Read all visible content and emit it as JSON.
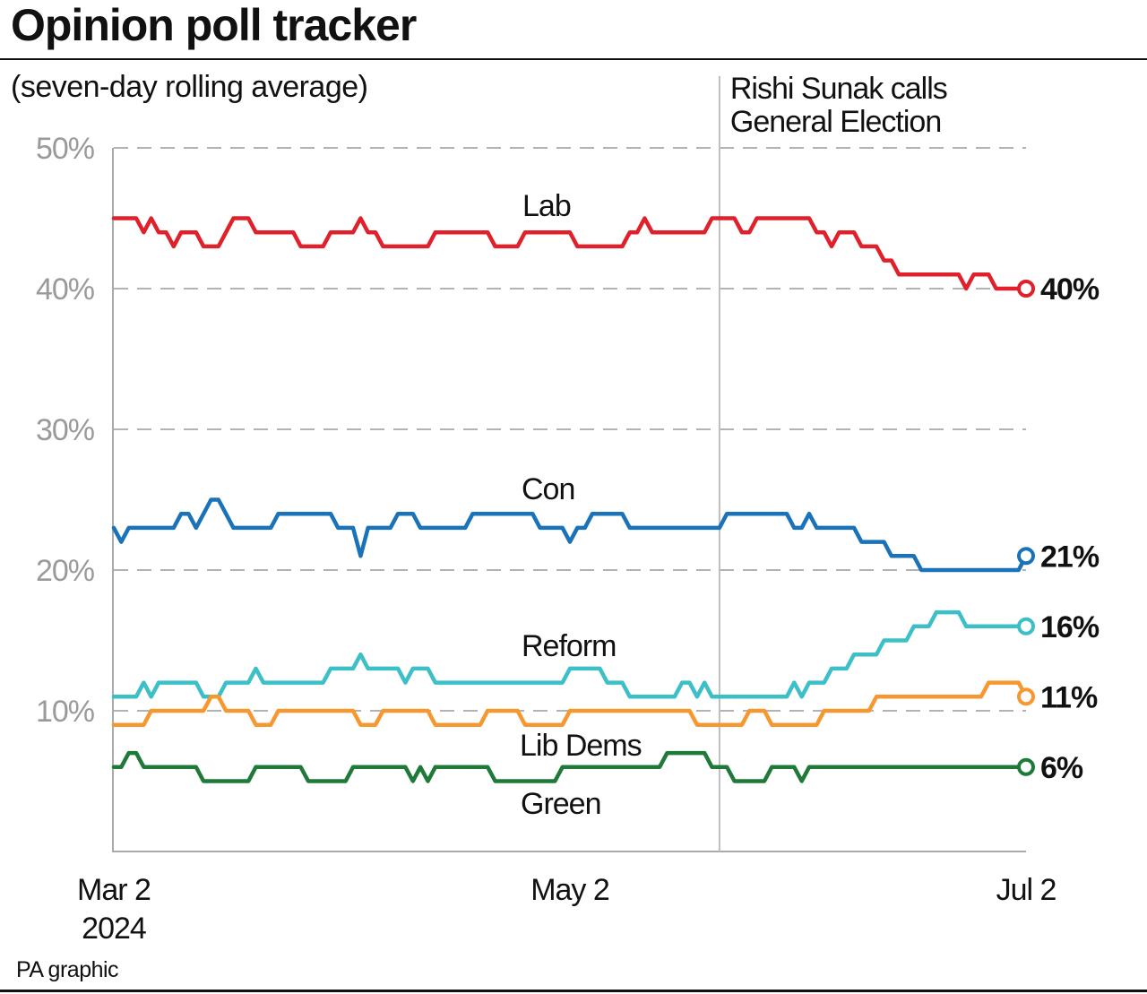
{
  "title": "Opinion poll tracker",
  "subtitle": "(seven-day rolling average)",
  "source": "PA graphic",
  "chart_data": {
    "type": "line",
    "title": "Opinion poll tracker",
    "subtitle": "(seven-day rolling average)",
    "xlabel": "",
    "ylabel": "",
    "xlim": [
      "2024-03-02",
      "2024-07-02"
    ],
    "ylim": [
      0,
      50
    ],
    "y_ticks": [
      {
        "value": 10,
        "label": "10%"
      },
      {
        "value": 20,
        "label": "20%"
      },
      {
        "value": 30,
        "label": "30%"
      },
      {
        "value": 40,
        "label": "40%"
      },
      {
        "value": 50,
        "label": "50%"
      }
    ],
    "x_ticks": [
      {
        "date": "2024-03-02",
        "label": "Mar 2",
        "label2": "2024"
      },
      {
        "date": "2024-05-02",
        "label": "May 2",
        "label2": ""
      },
      {
        "date": "2024-07-02",
        "label": "Jul 2",
        "label2": ""
      }
    ],
    "grid": "horizontal dashed",
    "annotation": {
      "date": "2024-05-22",
      "line1": "Rishi Sunak calls",
      "line2": "General Election"
    },
    "series": [
      {
        "name": "Lab",
        "color": "#e0202a",
        "end_label": "40%",
        "points": [
          [
            "2024-03-02",
            45
          ],
          [
            "2024-03-05",
            45
          ],
          [
            "2024-03-06",
            44
          ],
          [
            "2024-03-07",
            45
          ],
          [
            "2024-03-08",
            44
          ],
          [
            "2024-03-09",
            44
          ],
          [
            "2024-03-10",
            43
          ],
          [
            "2024-03-11",
            44
          ],
          [
            "2024-03-13",
            44
          ],
          [
            "2024-03-14",
            43
          ],
          [
            "2024-03-16",
            43
          ],
          [
            "2024-03-18",
            45
          ],
          [
            "2024-03-20",
            45
          ],
          [
            "2024-03-21",
            44
          ],
          [
            "2024-03-26",
            44
          ],
          [
            "2024-03-27",
            43
          ],
          [
            "2024-03-30",
            43
          ],
          [
            "2024-03-31",
            44
          ],
          [
            "2024-04-03",
            44
          ],
          [
            "2024-04-04",
            45
          ],
          [
            "2024-04-05",
            44
          ],
          [
            "2024-04-06",
            44
          ],
          [
            "2024-04-07",
            43
          ],
          [
            "2024-04-13",
            43
          ],
          [
            "2024-04-14",
            44
          ],
          [
            "2024-04-21",
            44
          ],
          [
            "2024-04-22",
            43
          ],
          [
            "2024-04-25",
            43
          ],
          [
            "2024-04-26",
            44
          ],
          [
            "2024-05-02",
            44
          ],
          [
            "2024-05-03",
            43
          ],
          [
            "2024-05-09",
            43
          ],
          [
            "2024-05-10",
            44
          ],
          [
            "2024-05-11",
            44
          ],
          [
            "2024-05-12",
            45
          ],
          [
            "2024-05-13",
            44
          ],
          [
            "2024-05-20",
            44
          ],
          [
            "2024-05-21",
            45
          ],
          [
            "2024-05-24",
            45
          ],
          [
            "2024-05-25",
            44
          ],
          [
            "2024-05-26",
            44
          ],
          [
            "2024-05-27",
            45
          ],
          [
            "2024-06-03",
            45
          ],
          [
            "2024-06-04",
            44
          ],
          [
            "2024-06-05",
            44
          ],
          [
            "2024-06-06",
            43
          ],
          [
            "2024-06-07",
            44
          ],
          [
            "2024-06-09",
            44
          ],
          [
            "2024-06-10",
            43
          ],
          [
            "2024-06-12",
            43
          ],
          [
            "2024-06-13",
            42
          ],
          [
            "2024-06-14",
            42
          ],
          [
            "2024-06-15",
            41
          ],
          [
            "2024-06-23",
            41
          ],
          [
            "2024-06-24",
            40
          ],
          [
            "2024-06-25",
            41
          ],
          [
            "2024-06-27",
            41
          ],
          [
            "2024-06-28",
            40
          ],
          [
            "2024-07-02",
            40
          ]
        ]
      },
      {
        "name": "Con",
        "color": "#1a72b8",
        "end_label": "21%",
        "points": [
          [
            "2024-03-02",
            23
          ],
          [
            "2024-03-03",
            22
          ],
          [
            "2024-03-04",
            23
          ],
          [
            "2024-03-10",
            23
          ],
          [
            "2024-03-11",
            24
          ],
          [
            "2024-03-12",
            24
          ],
          [
            "2024-03-13",
            23
          ],
          [
            "2024-03-15",
            25
          ],
          [
            "2024-03-16",
            25
          ],
          [
            "2024-03-18",
            23
          ],
          [
            "2024-03-23",
            23
          ],
          [
            "2024-03-24",
            24
          ],
          [
            "2024-03-31",
            24
          ],
          [
            "2024-04-01",
            23
          ],
          [
            "2024-04-03",
            23
          ],
          [
            "2024-04-04",
            21
          ],
          [
            "2024-04-05",
            23
          ],
          [
            "2024-04-08",
            23
          ],
          [
            "2024-04-09",
            24
          ],
          [
            "2024-04-11",
            24
          ],
          [
            "2024-04-12",
            23
          ],
          [
            "2024-04-18",
            23
          ],
          [
            "2024-04-19",
            24
          ],
          [
            "2024-04-27",
            24
          ],
          [
            "2024-04-28",
            23
          ],
          [
            "2024-05-01",
            23
          ],
          [
            "2024-05-02",
            22
          ],
          [
            "2024-05-03",
            23
          ],
          [
            "2024-05-04",
            23
          ],
          [
            "2024-05-05",
            24
          ],
          [
            "2024-05-09",
            24
          ],
          [
            "2024-05-10",
            23
          ],
          [
            "2024-05-22",
            23
          ],
          [
            "2024-05-23",
            24
          ],
          [
            "2024-05-31",
            24
          ],
          [
            "2024-06-01",
            23
          ],
          [
            "2024-06-02",
            23
          ],
          [
            "2024-06-03",
            24
          ],
          [
            "2024-06-04",
            23
          ],
          [
            "2024-06-09",
            23
          ],
          [
            "2024-06-10",
            22
          ],
          [
            "2024-06-13",
            22
          ],
          [
            "2024-06-14",
            21
          ],
          [
            "2024-06-17",
            21
          ],
          [
            "2024-06-18",
            20
          ],
          [
            "2024-07-01",
            20
          ],
          [
            "2024-07-02",
            21
          ]
        ]
      },
      {
        "name": "Reform",
        "color": "#3cbfc6",
        "end_label": "16%",
        "points": [
          [
            "2024-03-02",
            11
          ],
          [
            "2024-03-05",
            11
          ],
          [
            "2024-03-06",
            12
          ],
          [
            "2024-03-07",
            11
          ],
          [
            "2024-03-08",
            12
          ],
          [
            "2024-03-13",
            12
          ],
          [
            "2024-03-14",
            11
          ],
          [
            "2024-03-16",
            11
          ],
          [
            "2024-03-17",
            12
          ],
          [
            "2024-03-20",
            12
          ],
          [
            "2024-03-21",
            13
          ],
          [
            "2024-03-22",
            12
          ],
          [
            "2024-03-30",
            12
          ],
          [
            "2024-03-31",
            13
          ],
          [
            "2024-04-03",
            13
          ],
          [
            "2024-04-04",
            14
          ],
          [
            "2024-04-05",
            13
          ],
          [
            "2024-04-09",
            13
          ],
          [
            "2024-04-10",
            12
          ],
          [
            "2024-04-11",
            13
          ],
          [
            "2024-04-13",
            13
          ],
          [
            "2024-04-14",
            12
          ],
          [
            "2024-05-01",
            12
          ],
          [
            "2024-05-02",
            13
          ],
          [
            "2024-05-06",
            13
          ],
          [
            "2024-05-07",
            12
          ],
          [
            "2024-05-09",
            12
          ],
          [
            "2024-05-10",
            11
          ],
          [
            "2024-05-16",
            11
          ],
          [
            "2024-05-17",
            12
          ],
          [
            "2024-05-18",
            12
          ],
          [
            "2024-05-19",
            11
          ],
          [
            "2024-05-20",
            12
          ],
          [
            "2024-05-21",
            11
          ],
          [
            "2024-05-31",
            11
          ],
          [
            "2024-06-01",
            12
          ],
          [
            "2024-06-02",
            11
          ],
          [
            "2024-06-03",
            12
          ],
          [
            "2024-06-05",
            12
          ],
          [
            "2024-06-06",
            13
          ],
          [
            "2024-06-08",
            13
          ],
          [
            "2024-06-09",
            14
          ],
          [
            "2024-06-12",
            14
          ],
          [
            "2024-06-13",
            15
          ],
          [
            "2024-06-16",
            15
          ],
          [
            "2024-06-17",
            16
          ],
          [
            "2024-06-19",
            16
          ],
          [
            "2024-06-20",
            17
          ],
          [
            "2024-06-23",
            17
          ],
          [
            "2024-06-24",
            16
          ],
          [
            "2024-07-02",
            16
          ]
        ]
      },
      {
        "name": "Lib Dems",
        "color": "#f7972f",
        "end_label": "11%",
        "points": [
          [
            "2024-03-02",
            9
          ],
          [
            "2024-03-06",
            9
          ],
          [
            "2024-03-07",
            10
          ],
          [
            "2024-03-14",
            10
          ],
          [
            "2024-03-15",
            11
          ],
          [
            "2024-03-16",
            11
          ],
          [
            "2024-03-17",
            10
          ],
          [
            "2024-03-20",
            10
          ],
          [
            "2024-03-21",
            9
          ],
          [
            "2024-03-23",
            9
          ],
          [
            "2024-03-24",
            10
          ],
          [
            "2024-04-03",
            10
          ],
          [
            "2024-04-04",
            9
          ],
          [
            "2024-04-06",
            9
          ],
          [
            "2024-04-07",
            10
          ],
          [
            "2024-04-13",
            10
          ],
          [
            "2024-04-14",
            9
          ],
          [
            "2024-04-20",
            9
          ],
          [
            "2024-04-21",
            10
          ],
          [
            "2024-04-25",
            10
          ],
          [
            "2024-04-26",
            9
          ],
          [
            "2024-05-01",
            9
          ],
          [
            "2024-05-02",
            10
          ],
          [
            "2024-05-18",
            10
          ],
          [
            "2024-05-19",
            9
          ],
          [
            "2024-05-25",
            9
          ],
          [
            "2024-05-26",
            10
          ],
          [
            "2024-05-28",
            10
          ],
          [
            "2024-05-29",
            9
          ],
          [
            "2024-06-04",
            9
          ],
          [
            "2024-06-05",
            10
          ],
          [
            "2024-06-11",
            10
          ],
          [
            "2024-06-12",
            11
          ],
          [
            "2024-06-26",
            11
          ],
          [
            "2024-06-27",
            12
          ],
          [
            "2024-07-01",
            12
          ],
          [
            "2024-07-02",
            11
          ]
        ]
      },
      {
        "name": "Green",
        "color": "#1f7a3a",
        "end_label": "6%",
        "points": [
          [
            "2024-03-02",
            6
          ],
          [
            "2024-03-03",
            6
          ],
          [
            "2024-03-04",
            7
          ],
          [
            "2024-03-05",
            7
          ],
          [
            "2024-03-06",
            6
          ],
          [
            "2024-03-13",
            6
          ],
          [
            "2024-03-14",
            5
          ],
          [
            "2024-03-20",
            5
          ],
          [
            "2024-03-21",
            6
          ],
          [
            "2024-03-27",
            6
          ],
          [
            "2024-03-28",
            5
          ],
          [
            "2024-04-02",
            5
          ],
          [
            "2024-04-03",
            6
          ],
          [
            "2024-04-10",
            6
          ],
          [
            "2024-04-11",
            5
          ],
          [
            "2024-04-12",
            6
          ],
          [
            "2024-04-13",
            5
          ],
          [
            "2024-04-14",
            6
          ],
          [
            "2024-04-21",
            6
          ],
          [
            "2024-04-22",
            5
          ],
          [
            "2024-04-30",
            5
          ],
          [
            "2024-05-01",
            6
          ],
          [
            "2024-05-14",
            6
          ],
          [
            "2024-05-15",
            7
          ],
          [
            "2024-05-20",
            7
          ],
          [
            "2024-05-21",
            6
          ],
          [
            "2024-05-23",
            6
          ],
          [
            "2024-05-24",
            5
          ],
          [
            "2024-05-28",
            5
          ],
          [
            "2024-05-29",
            6
          ],
          [
            "2024-06-01",
            6
          ],
          [
            "2024-06-02",
            5
          ],
          [
            "2024-06-03",
            6
          ],
          [
            "2024-07-02",
            6
          ]
        ]
      }
    ]
  }
}
